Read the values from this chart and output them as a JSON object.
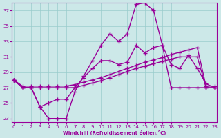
{
  "xlabel": "Windchill (Refroidissement éolien,°C)",
  "xlim": [
    0,
    23
  ],
  "ylim": [
    22.5,
    38
  ],
  "xticks": [
    0,
    1,
    2,
    3,
    4,
    5,
    6,
    7,
    8,
    9,
    10,
    11,
    12,
    13,
    14,
    15,
    16,
    17,
    18,
    19,
    20,
    21,
    22,
    23
  ],
  "yticks": [
    23,
    25,
    27,
    29,
    31,
    33,
    35,
    37
  ],
  "bg_color": "#cce8e8",
  "grid_color": "#99cccc",
  "line_color": "#990099",
  "line_width": 1.0,
  "marker": "+",
  "marker_size": 4,
  "curve1_x": [
    0,
    1,
    2,
    3,
    4,
    5,
    6,
    7,
    8,
    9,
    10,
    11,
    12,
    13,
    14,
    15,
    16,
    17,
    18,
    19,
    20,
    21,
    22,
    23
  ],
  "curve1_y": [
    28.0,
    27.2,
    27.2,
    27.2,
    27.2,
    27.2,
    27.2,
    27.4,
    27.7,
    28.0,
    28.3,
    28.7,
    29.1,
    29.5,
    29.9,
    30.3,
    30.6,
    30.9,
    31.3,
    31.6,
    31.9,
    32.2,
    27.2,
    27.2
  ],
  "curve2_x": [
    0,
    1,
    2,
    3,
    4,
    5,
    6,
    7,
    8,
    9,
    10,
    11,
    12,
    13,
    14,
    15,
    16,
    17,
    18,
    19,
    20,
    21,
    22,
    23
  ],
  "curve2_y": [
    28.0,
    27.0,
    27.0,
    27.0,
    27.0,
    27.0,
    27.0,
    27.0,
    27.3,
    27.6,
    27.9,
    28.3,
    28.7,
    29.1,
    29.5,
    29.8,
    30.1,
    30.4,
    30.7,
    31.0,
    31.0,
    31.0,
    27.0,
    27.0
  ],
  "curve3_x": [
    0,
    1,
    2,
    3,
    4,
    5,
    6,
    7,
    8,
    9,
    10,
    11,
    12,
    13,
    14,
    15,
    16,
    17,
    18,
    19,
    20,
    21,
    22,
    23
  ],
  "curve3_y": [
    28.0,
    27.0,
    27.0,
    24.5,
    25.0,
    25.5,
    25.5,
    27.0,
    28.3,
    29.5,
    30.5,
    30.5,
    30.0,
    30.3,
    32.5,
    31.5,
    32.2,
    32.5,
    27.0,
    27.0,
    27.0,
    27.0,
    27.0,
    27.0
  ],
  "curve4_x": [
    0,
    1,
    2,
    3,
    4,
    5,
    6,
    7,
    8,
    9,
    10,
    11,
    12,
    13,
    14,
    15,
    16,
    17,
    18,
    19,
    20,
    21,
    22,
    23
  ],
  "curve4_y": [
    28.0,
    27.0,
    27.0,
    24.5,
    23.0,
    23.0,
    23.0,
    26.5,
    28.5,
    30.5,
    32.5,
    34.0,
    33.0,
    34.0,
    37.8,
    38.0,
    37.0,
    32.5,
    30.0,
    29.5,
    31.2,
    29.5,
    27.5,
    27.0
  ]
}
